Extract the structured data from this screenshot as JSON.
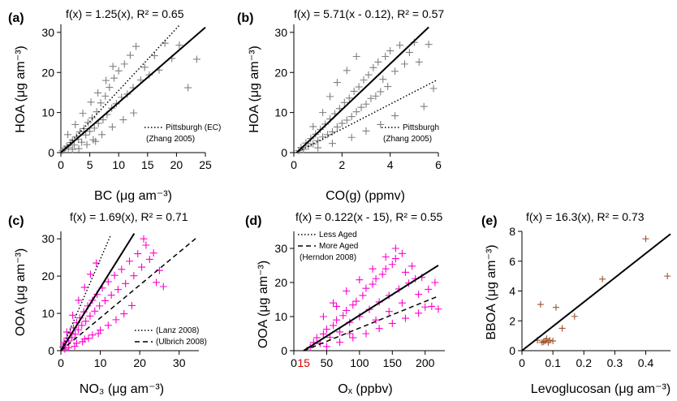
{
  "chart_data": [
    {
      "panel": "(a)",
      "type": "scatter",
      "fit_text": "f(x) = 1.25(x), R² = 0.65",
      "xlabel": "BC (μg am⁻³)",
      "ylabel": "HOA (μg am⁻³)",
      "xlim": [
        0,
        25
      ],
      "ylim": [
        0,
        32
      ],
      "xticks": [
        0,
        5,
        10,
        15,
        20,
        25
      ],
      "yticks": [
        0,
        10,
        20,
        30
      ],
      "marker_color": "#808080",
      "fit": {
        "slope": 1.25,
        "x0": 0,
        "x_end": 25,
        "style": "solid"
      },
      "references": [
        {
          "label": "Pittsburgh (EC)",
          "sublabel": "(Zhang 2005)",
          "slope": 1.55,
          "x0": 0,
          "x_end": 20.5,
          "style": "dotted"
        }
      ],
      "points": [
        [
          0.3,
          0.5
        ],
        [
          0.6,
          0.9
        ],
        [
          1.0,
          1.6
        ],
        [
          1.3,
          1.2
        ],
        [
          1.7,
          2.5
        ],
        [
          2.0,
          3.1
        ],
        [
          2.3,
          1.9
        ],
        [
          2.7,
          4.0
        ],
        [
          3.0,
          3.3
        ],
        [
          3.3,
          5.2
        ],
        [
          3.6,
          2.6
        ],
        [
          4.0,
          6.0
        ],
        [
          4.3,
          4.4
        ],
        [
          4.7,
          7.5
        ],
        [
          5.0,
          5.3
        ],
        [
          5.4,
          8.7
        ],
        [
          5.8,
          6.1
        ],
        [
          6.2,
          10.2
        ],
        [
          6.5,
          7.3
        ],
        [
          6.9,
          12.4
        ],
        [
          7.3,
          8.2
        ],
        [
          7.7,
          14.1
        ],
        [
          8.0,
          9.5
        ],
        [
          8.4,
          16.3
        ],
        [
          8.8,
          11.1
        ],
        [
          9.2,
          18.6
        ],
        [
          9.6,
          12.2
        ],
        [
          10.0,
          20.4
        ],
        [
          10.5,
          13.8
        ],
        [
          11.0,
          22.1
        ],
        [
          11.5,
          14.6
        ],
        [
          12.0,
          24.3
        ],
        [
          12.5,
          16.2
        ],
        [
          13.0,
          26.5
        ],
        [
          13.8,
          18.1
        ],
        [
          14.5,
          21.3
        ],
        [
          15.3,
          19.4
        ],
        [
          16.2,
          24.2
        ],
        [
          17.0,
          20.6
        ],
        [
          18.0,
          27.3
        ],
        [
          19.2,
          23.5
        ],
        [
          20.5,
          26.8
        ],
        [
          22.0,
          16.2
        ],
        [
          23.5,
          23.3
        ],
        [
          1.2,
          4.5
        ],
        [
          2.5,
          7.0
        ],
        [
          3.8,
          9.8
        ],
        [
          5.2,
          12.6
        ],
        [
          6.4,
          14.9
        ],
        [
          7.8,
          18.0
        ],
        [
          9.0,
          21.5
        ],
        [
          3.1,
          1.0
        ],
        [
          5.6,
          3.2
        ],
        [
          7.1,
          4.5
        ],
        [
          8.9,
          6.4
        ],
        [
          10.8,
          8.2
        ],
        [
          12.6,
          9.9
        ],
        [
          2.0,
          0.8
        ],
        [
          4.5,
          2.0
        ],
        [
          6.0,
          2.8
        ]
      ]
    },
    {
      "panel": "(b)",
      "type": "scatter",
      "fit_text": "f(x) = 5.71(x - 0.12), R² = 0.57",
      "xlabel": "CO(g) (ppmv)",
      "ylabel": "HOA (μg am⁻³)",
      "xlim": [
        0,
        6
      ],
      "ylim": [
        0,
        32
      ],
      "xticks": [
        0,
        2,
        4,
        6
      ],
      "yticks": [
        0,
        10,
        20,
        30
      ],
      "marker_color": "#808080",
      "fit": {
        "slope": 5.71,
        "x0": 0.12,
        "x_end": 5.6,
        "style": "solid"
      },
      "references": [
        {
          "label": "Pittsburgh",
          "sublabel": "(Zhang 2005)",
          "slope": 3.1,
          "x0": 0.1,
          "x_end": 5.95,
          "style": "dotted"
        }
      ],
      "points": [
        [
          0.2,
          0.5
        ],
        [
          0.3,
          1.3
        ],
        [
          0.4,
          0.8
        ],
        [
          0.5,
          2.4
        ],
        [
          0.6,
          1.6
        ],
        [
          0.7,
          3.5
        ],
        [
          0.8,
          2.2
        ],
        [
          0.9,
          4.6
        ],
        [
          1.0,
          3.0
        ],
        [
          1.1,
          5.8
        ],
        [
          1.2,
          3.9
        ],
        [
          1.3,
          7.1
        ],
        [
          1.4,
          4.5
        ],
        [
          1.5,
          8.4
        ],
        [
          1.6,
          5.2
        ],
        [
          1.7,
          9.7
        ],
        [
          1.8,
          6.4
        ],
        [
          1.9,
          11.0
        ],
        [
          2.0,
          7.3
        ],
        [
          2.1,
          12.5
        ],
        [
          2.2,
          8.1
        ],
        [
          2.3,
          13.6
        ],
        [
          2.4,
          9.0
        ],
        [
          2.5,
          15.3
        ],
        [
          2.6,
          10.2
        ],
        [
          2.7,
          16.4
        ],
        [
          2.8,
          11.3
        ],
        [
          2.9,
          18.1
        ],
        [
          3.0,
          12.1
        ],
        [
          3.1,
          19.4
        ],
        [
          3.2,
          13.5
        ],
        [
          3.3,
          21.2
        ],
        [
          3.4,
          14.1
        ],
        [
          3.5,
          22.6
        ],
        [
          3.6,
          15.2
        ],
        [
          3.7,
          18.3
        ],
        [
          3.8,
          24.0
        ],
        [
          3.9,
          16.5
        ],
        [
          4.0,
          25.4
        ],
        [
          4.2,
          20.3
        ],
        [
          4.4,
          26.8
        ],
        [
          4.6,
          22.1
        ],
        [
          4.8,
          25.0
        ],
        [
          5.0,
          27.5
        ],
        [
          5.2,
          22.6
        ],
        [
          5.4,
          11.5
        ],
        [
          5.6,
          27.0
        ],
        [
          5.8,
          16.0
        ],
        [
          0.8,
          6.5
        ],
        [
          1.2,
          10.0
        ],
        [
          1.5,
          14.0
        ],
        [
          1.8,
          17.5
        ],
        [
          2.2,
          20.5
        ],
        [
          2.6,
          24.0
        ],
        [
          1.0,
          1.2
        ],
        [
          1.6,
          2.3
        ],
        [
          2.4,
          3.8
        ],
        [
          3.0,
          5.4
        ],
        [
          3.6,
          7.0
        ],
        [
          4.2,
          9.2
        ]
      ]
    },
    {
      "panel": "(c)",
      "type": "scatter",
      "fit_text": "f(x) = 1.69(x), R² = 0.71",
      "xlabel": "NO₃ (μg am⁻³)",
      "ylabel": "OOA (μg am⁻³)",
      "xlim": [
        0,
        35
      ],
      "ylim": [
        0,
        32
      ],
      "xticks": [
        0,
        10,
        20,
        30
      ],
      "yticks": [
        0,
        10,
        20,
        30
      ],
      "marker_color": "#ff00cc",
      "fit": {
        "slope": 1.69,
        "x0": 0,
        "x_end": 18.6,
        "style": "solid"
      },
      "references": [
        {
          "label": "(Lanz 2008)",
          "slope": 2.45,
          "x0": 0,
          "x_end": 12.7,
          "style": "dotted"
        },
        {
          "label": "(Ulbrich 2008)",
          "slope": 0.88,
          "x0": 0,
          "x_end": 34.5,
          "style": "dashed"
        }
      ],
      "points": [
        [
          0.5,
          1.0
        ],
        [
          0.8,
          2.2
        ],
        [
          1.2,
          1.5
        ],
        [
          1.6,
          3.4
        ],
        [
          2.0,
          2.6
        ],
        [
          2.4,
          4.7
        ],
        [
          2.8,
          3.5
        ],
        [
          3.2,
          6.1
        ],
        [
          3.6,
          4.4
        ],
        [
          4.0,
          7.5
        ],
        [
          4.4,
          5.6
        ],
        [
          4.8,
          8.8
        ],
        [
          5.3,
          6.8
        ],
        [
          5.8,
          10.4
        ],
        [
          6.3,
          7.9
        ],
        [
          6.8,
          12.0
        ],
        [
          7.4,
          9.3
        ],
        [
          8.0,
          13.5
        ],
        [
          8.6,
          10.6
        ],
        [
          9.2,
          15.1
        ],
        [
          9.8,
          12.0
        ],
        [
          10.5,
          16.8
        ],
        [
          11.2,
          13.4
        ],
        [
          12.0,
          18.5
        ],
        [
          12.8,
          14.9
        ],
        [
          13.6,
          20.2
        ],
        [
          14.5,
          16.4
        ],
        [
          15.4,
          21.8
        ],
        [
          16.4,
          18.0
        ],
        [
          17.4,
          24.0
        ],
        [
          18.5,
          20.1
        ],
        [
          19.5,
          26.0
        ],
        [
          20.5,
          22.4
        ],
        [
          21.6,
          28.3
        ],
        [
          22.5,
          24.5
        ],
        [
          23.5,
          26.2
        ],
        [
          24.2,
          18.3
        ],
        [
          25.0,
          21.5
        ],
        [
          26.0,
          17.2
        ],
        [
          21.0,
          30.0
        ],
        [
          1.5,
          5.0
        ],
        [
          3.0,
          9.5
        ],
        [
          4.5,
          13.5
        ],
        [
          6.0,
          17.0
        ],
        [
          7.5,
          20.5
        ],
        [
          9.0,
          23.5
        ],
        [
          2.0,
          0.8
        ],
        [
          4.0,
          2.0
        ],
        [
          6.0,
          3.1
        ],
        [
          8.0,
          4.2
        ],
        [
          10.0,
          5.5
        ],
        [
          12.0,
          6.8
        ],
        [
          14.0,
          8.3
        ],
        [
          16.0,
          9.9
        ],
        [
          18.0,
          12.1
        ],
        [
          1.0,
          0.4
        ],
        [
          3.5,
          1.2
        ],
        [
          5.5,
          2.4
        ],
        [
          7.0,
          3.3
        ],
        [
          9.5,
          4.6
        ]
      ]
    },
    {
      "panel": "(d)",
      "type": "scatter",
      "fit_text": "f(x) = 0.122(x - 15), R² = 0.55",
      "xlabel": "Oₓ (ppbv)",
      "ylabel": "OOA (μg am⁻³)",
      "xlim": [
        0,
        230
      ],
      "ylim": [
        0,
        35
      ],
      "xticks": [
        0,
        50,
        100,
        150,
        200
      ],
      "yticks": [
        0,
        10,
        20,
        30
      ],
      "x_annotation": {
        "value": 15,
        "text": "15",
        "color": "#dd0000"
      },
      "marker_color": "#ff00cc",
      "fit": {
        "slope": 0.122,
        "x0": 15,
        "x_end": 220,
        "style": "solid"
      },
      "references": [
        {
          "label": "Less Aged",
          "slope": 0.122,
          "x0": 15,
          "x_end": 220,
          "style": "dotted"
        },
        {
          "label": "More Aged",
          "slope": 0.078,
          "x0": 15,
          "x_end": 220,
          "style": "dashed"
        },
        {
          "label": "(Herndon 2008)",
          "style": "none"
        }
      ],
      "points": [
        [
          25,
          1.0
        ],
        [
          30,
          2.4
        ],
        [
          35,
          3.8
        ],
        [
          40,
          2.1
        ],
        [
          45,
          4.9
        ],
        [
          50,
          6.3
        ],
        [
          55,
          3.9
        ],
        [
          60,
          7.4
        ],
        [
          65,
          9.0
        ],
        [
          70,
          5.5
        ],
        [
          75,
          10.3
        ],
        [
          80,
          11.8
        ],
        [
          85,
          8.3
        ],
        [
          90,
          13.4
        ],
        [
          95,
          14.5
        ],
        [
          100,
          10.0
        ],
        [
          105,
          16.2
        ],
        [
          110,
          18.3
        ],
        [
          115,
          12.1
        ],
        [
          120,
          19.5
        ],
        [
          125,
          21.1
        ],
        [
          130,
          14.3
        ],
        [
          135,
          22.4
        ],
        [
          140,
          24.0
        ],
        [
          145,
          16.2
        ],
        [
          150,
          25.3
        ],
        [
          155,
          27.0
        ],
        [
          160,
          18.1
        ],
        [
          165,
          28.5
        ],
        [
          170,
          23.0
        ],
        [
          175,
          19.8
        ],
        [
          180,
          24.8
        ],
        [
          185,
          21.1
        ],
        [
          190,
          16.5
        ],
        [
          195,
          21.5
        ],
        [
          200,
          12.8
        ],
        [
          205,
          18.0
        ],
        [
          210,
          13.0
        ],
        [
          215,
          20.0
        ],
        [
          220,
          12.2
        ],
        [
          60,
          14.0
        ],
        [
          80,
          17.5
        ],
        [
          100,
          20.8
        ],
        [
          120,
          24.0
        ],
        [
          140,
          27.5
        ],
        [
          155,
          30.0
        ],
        [
          50,
          1.2
        ],
        [
          70,
          2.5
        ],
        [
          90,
          3.8
        ],
        [
          110,
          5.0
        ],
        [
          130,
          6.5
        ],
        [
          150,
          8.0
        ],
        [
          170,
          9.5
        ],
        [
          190,
          11.0
        ],
        [
          45,
          10.0
        ],
        [
          65,
          13.0
        ],
        [
          85,
          5.0
        ],
        [
          125,
          9.0
        ],
        [
          145,
          11.5
        ],
        [
          165,
          14.0
        ]
      ]
    },
    {
      "panel": "(e)",
      "type": "scatter",
      "fit_text": "f(x) = 16.3(x), R² = 0.73",
      "xlabel": "Levoglucosan (μg am⁻³)",
      "ylabel": "BBOA (μg am⁻³)",
      "xlim": [
        0,
        0.48
      ],
      "ylim": [
        0,
        8
      ],
      "xticks": [
        0.0,
        0.1,
        0.2,
        0.3,
        0.4
      ],
      "yticks": [
        0,
        2,
        4,
        6,
        8
      ],
      "marker_color": "#a0522d",
      "fit": {
        "slope": 16.3,
        "x0": 0,
        "x_end": 0.48,
        "style": "solid"
      },
      "points": [
        [
          0.05,
          0.7
        ],
        [
          0.06,
          3.1
        ],
        [
          0.065,
          0.55
        ],
        [
          0.07,
          0.6
        ],
        [
          0.075,
          0.65
        ],
        [
          0.08,
          0.8
        ],
        [
          0.085,
          0.55
        ],
        [
          0.09,
          0.7
        ],
        [
          0.1,
          0.65
        ],
        [
          0.11,
          2.9
        ],
        [
          0.13,
          1.5
        ],
        [
          0.17,
          2.3
        ],
        [
          0.26,
          4.8
        ],
        [
          0.4,
          7.5
        ],
        [
          0.47,
          5.0
        ]
      ]
    }
  ]
}
